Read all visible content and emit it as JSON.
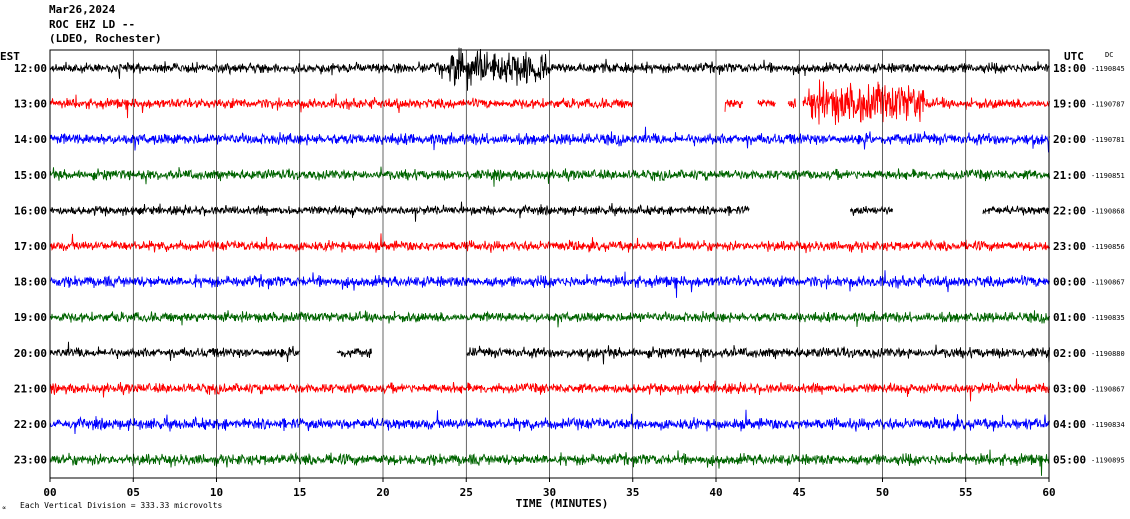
{
  "header": {
    "date": "Mar26,2024",
    "station": "ROC EHZ LD --",
    "network": "(LDEO, Rochester)"
  },
  "left_axis_label": "EST",
  "right_axis_label": "UTC",
  "dc_label": "DC",
  "xlabel": "TIME (MINUTES)",
  "footer_note": "Each Vertical Division =  333.33 microvolts",
  "footer_glyph": "∝",
  "colors": {
    "black": "#000000",
    "red": "#ff0000",
    "blue": "#0000ff",
    "green": "#006400",
    "grid": "#000000"
  },
  "chart_data": {
    "type": "seismogram",
    "x_ticks": [
      "00",
      "05",
      "10",
      "15",
      "20",
      "25",
      "30",
      "35",
      "40",
      "45",
      "50",
      "55",
      "60"
    ],
    "xlim": [
      0,
      60
    ],
    "traces": [
      {
        "est": "12:00",
        "utc": "18:00",
        "dc": "-1190845",
        "color": "black",
        "amp": 8,
        "gaps": [],
        "bursts": [
          [
            24,
            30,
            3.5
          ]
        ]
      },
      {
        "est": "13:00",
        "utc": "19:00",
        "dc": "-1190787",
        "color": "red",
        "amp": 8,
        "gaps": [
          [
            35,
            40.5
          ],
          [
            41.6,
            42.5
          ],
          [
            43.6,
            44.3
          ],
          [
            44.8,
            45.2
          ]
        ],
        "bursts": [
          [
            45.5,
            52.5,
            4
          ]
        ]
      },
      {
        "est": "14:00",
        "utc": "20:00",
        "dc": "-1190781",
        "color": "blue",
        "amp": 9,
        "gaps": [],
        "bursts": []
      },
      {
        "est": "15:00",
        "utc": "21:00",
        "dc": "-1190851",
        "color": "green",
        "amp": 8,
        "gaps": [],
        "bursts": []
      },
      {
        "est": "16:00",
        "utc": "22:00",
        "dc": "-1190868",
        "color": "black",
        "amp": 7,
        "gaps": [
          [
            42,
            48
          ],
          [
            50.6,
            56
          ]
        ],
        "bursts": []
      },
      {
        "est": "17:00",
        "utc": "23:00",
        "dc": "-1190856",
        "color": "red",
        "amp": 8,
        "gaps": [],
        "bursts": []
      },
      {
        "est": "18:00",
        "utc": "00:00",
        "dc": "-1190867",
        "color": "blue",
        "amp": 9,
        "gaps": [],
        "bursts": []
      },
      {
        "est": "19:00",
        "utc": "01:00",
        "dc": "-1190835",
        "color": "green",
        "amp": 8,
        "gaps": [],
        "bursts": []
      },
      {
        "est": "20:00",
        "utc": "02:00",
        "dc": "-1190880",
        "color": "black",
        "amp": 8,
        "gaps": [
          [
            15,
            17.2
          ],
          [
            19.3,
            25
          ]
        ],
        "bursts": []
      },
      {
        "est": "21:00",
        "utc": "03:00",
        "dc": "-1190867",
        "color": "red",
        "amp": 8,
        "gaps": [],
        "bursts": []
      },
      {
        "est": "22:00",
        "utc": "04:00",
        "dc": "-1190834",
        "color": "blue",
        "amp": 9,
        "gaps": [],
        "bursts": []
      },
      {
        "est": "23:00",
        "utc": "05:00",
        "dc": "-1190895",
        "color": "green",
        "amp": 9,
        "gaps": [],
        "bursts": []
      }
    ]
  }
}
